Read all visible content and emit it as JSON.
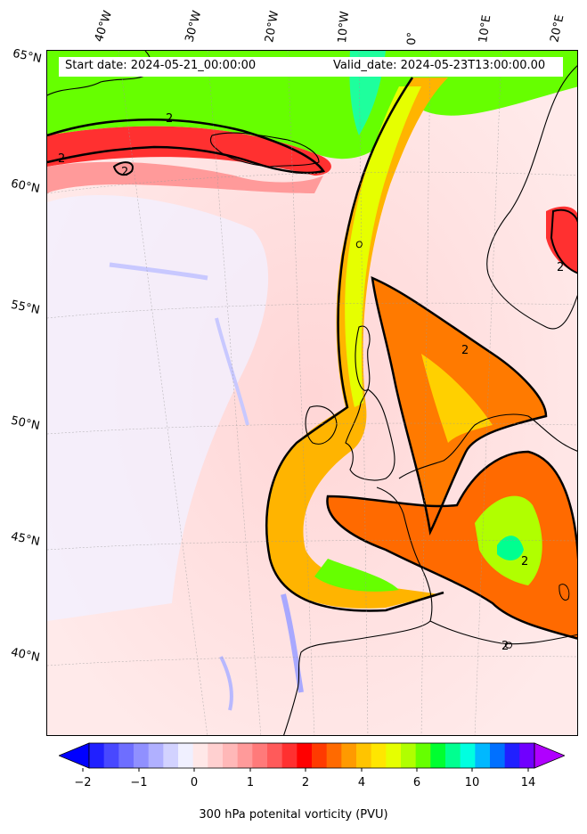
{
  "map": {
    "start_date_text": "Start date: 2024-05-21_00:00:00",
    "valid_date_text": "Valid_date: 2024-05-23T13:00:00.00",
    "contour_label": "2",
    "lon_labels": [
      "40°W",
      "30°W",
      "20°W",
      "10°W",
      "0°",
      "10°E",
      "20°E"
    ],
    "lat_labels": [
      "65°N",
      "60°N",
      "55°N",
      "50°N",
      "45°N",
      "40°N"
    ]
  },
  "colorbar": {
    "label": "300 hPa potenital vorticity (PVU)",
    "tick_labels": [
      "−2",
      "−1",
      "0",
      "1",
      "2",
      "4",
      "6",
      "10",
      "14"
    ],
    "tick_values": [
      -2,
      -1,
      0,
      1,
      2,
      4,
      6,
      10,
      14
    ],
    "colors": [
      "#0000ff",
      "#2020ff",
      "#4848ff",
      "#6e6eff",
      "#9090ff",
      "#b0b0ff",
      "#d2d2ff",
      "#f0f0ff",
      "#ffe8e8",
      "#ffd0d0",
      "#ffb8b8",
      "#ff9a9a",
      "#ff7a7a",
      "#ff5a5a",
      "#ff3030",
      "#ff0000",
      "#ff3a00",
      "#ff6a00",
      "#ff9a00",
      "#ffc400",
      "#ffe600",
      "#e6ff00",
      "#b0ff00",
      "#66ff00",
      "#00ff30",
      "#00ff90",
      "#00ffe0",
      "#00b8ff",
      "#0070ff",
      "#2020ff",
      "#7000ff",
      "#b000ff"
    ]
  }
}
